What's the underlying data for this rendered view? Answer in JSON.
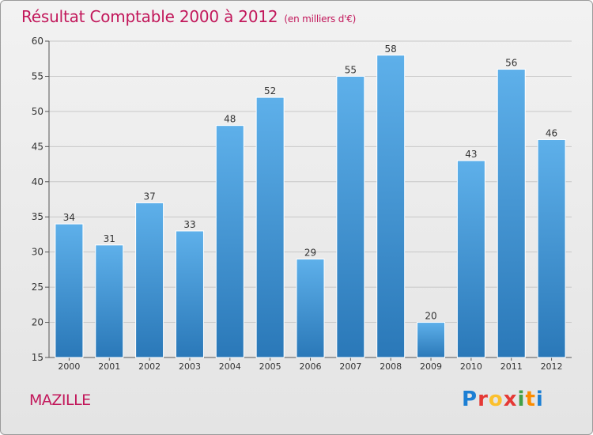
{
  "chart_data": {
    "type": "bar",
    "title": "Résultat Comptable 2000 à 2012",
    "subtitle": "(en milliers d'€)",
    "categories": [
      "2000",
      "2001",
      "2002",
      "2003",
      "2004",
      "2005",
      "2006",
      "2007",
      "2008",
      "2009",
      "2010",
      "2011",
      "2012"
    ],
    "values": [
      34,
      31,
      37,
      33,
      48,
      52,
      29,
      55,
      58,
      20,
      43,
      56,
      46
    ],
    "ylim": [
      15,
      60
    ],
    "yticks": [
      15,
      20,
      25,
      30,
      35,
      40,
      45,
      50,
      55,
      60
    ],
    "grid": true,
    "bar_color_top": "#5eb0ea",
    "bar_color_bottom": "#2a78b8"
  },
  "footer": {
    "commune": "MAZILLE",
    "brand_letters": [
      {
        "ch": "P",
        "color": "#1c7fd4"
      },
      {
        "ch": "r",
        "color": "#e53935"
      },
      {
        "ch": "o",
        "color": "#fbc02d"
      },
      {
        "ch": "x",
        "color": "#e53935"
      },
      {
        "ch": "i",
        "color": "#43a047"
      },
      {
        "ch": "t",
        "color": "#fb8c00"
      },
      {
        "ch": "i",
        "color": "#1c7fd4"
      }
    ]
  },
  "colors": {
    "title": "#c2185b",
    "grid": "#c8c8c8",
    "axis_text": "#333333"
  }
}
